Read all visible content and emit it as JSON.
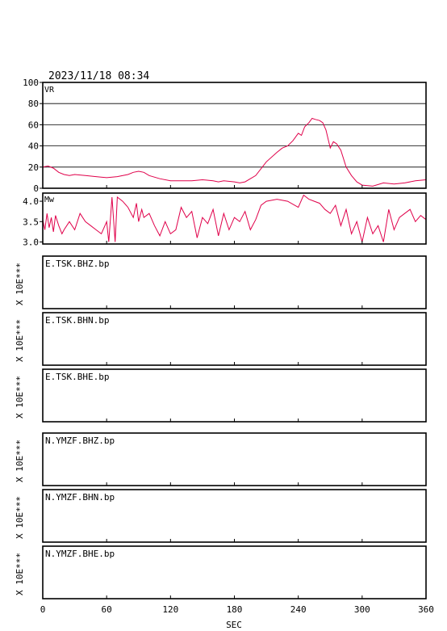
{
  "header": {
    "timestamp": "2023/11/18  08:34"
  },
  "colors": {
    "trace": "#e0004a",
    "frame": "#000000",
    "grid": "#000000"
  },
  "x_axis": {
    "label": "SEC",
    "ticks": [
      "0",
      "60",
      "120",
      "180",
      "240",
      "300",
      "360"
    ],
    "range": [
      0,
      360
    ]
  },
  "chart_data": [
    {
      "type": "line",
      "title": "VR",
      "ylim": [
        0,
        100
      ],
      "yticks": [
        "0",
        "20",
        "40",
        "60",
        "80",
        "100"
      ],
      "grid": true,
      "series": [
        {
          "x": [
            0,
            5,
            10,
            15,
            20,
            25,
            30,
            40,
            50,
            60,
            70,
            80,
            85,
            90,
            95,
            100,
            110,
            120,
            130,
            140,
            150,
            160,
            165,
            170,
            180,
            185,
            190,
            200,
            210,
            220,
            225,
            230,
            235,
            240,
            243,
            246,
            250,
            253,
            256,
            260,
            263,
            266,
            270,
            273,
            276,
            280,
            285,
            290,
            295,
            300,
            310,
            320,
            330,
            340,
            350,
            360
          ],
          "y": [
            20,
            21,
            19,
            15,
            13,
            12,
            13,
            12,
            11,
            10,
            11,
            13,
            15,
            16,
            15,
            12,
            9,
            7,
            7,
            7,
            8,
            7,
            6,
            7,
            6,
            5,
            6,
            12,
            25,
            34,
            38,
            40,
            45,
            52,
            50,
            58,
            62,
            66,
            65,
            64,
            62,
            55,
            38,
            44,
            42,
            36,
            20,
            12,
            6,
            3,
            2,
            5,
            4,
            5,
            7,
            8
          ]
        }
      ]
    },
    {
      "type": "line",
      "title": "Mw",
      "ylim": [
        2.95,
        4.2
      ],
      "yticks": [
        "3.0",
        "3.5",
        "4.0"
      ],
      "grid": false,
      "series": [
        {
          "x": [
            0,
            2,
            4,
            6,
            8,
            10,
            12,
            15,
            18,
            20,
            25,
            30,
            35,
            40,
            45,
            50,
            55,
            60,
            62,
            65,
            68,
            70,
            75,
            80,
            85,
            88,
            90,
            93,
            95,
            100,
            105,
            110,
            115,
            120,
            125,
            130,
            135,
            140,
            145,
            150,
            155,
            160,
            165,
            170,
            175,
            180,
            185,
            190,
            195,
            200,
            205,
            210,
            220,
            230,
            240,
            245,
            250,
            255,
            260,
            265,
            270,
            275,
            280,
            285,
            290,
            295,
            300,
            305,
            310,
            315,
            320,
            325,
            330,
            335,
            340,
            345,
            350,
            355,
            360
          ],
          "y": [
            3.55,
            3.3,
            3.7,
            3.35,
            3.6,
            3.25,
            3.65,
            3.4,
            3.2,
            3.3,
            3.5,
            3.3,
            3.7,
            3.5,
            3.4,
            3.3,
            3.2,
            3.5,
            3.0,
            4.1,
            3.0,
            4.1,
            4.0,
            3.85,
            3.6,
            3.95,
            3.5,
            3.8,
            3.6,
            3.7,
            3.4,
            3.15,
            3.5,
            3.2,
            3.3,
            3.85,
            3.6,
            3.75,
            3.1,
            3.6,
            3.45,
            3.8,
            3.15,
            3.7,
            3.3,
            3.6,
            3.5,
            3.75,
            3.3,
            3.55,
            3.9,
            4.0,
            4.05,
            4.0,
            3.85,
            4.15,
            4.05,
            4.0,
            3.95,
            3.8,
            3.7,
            3.9,
            3.4,
            3.8,
            3.2,
            3.5,
            3.0,
            3.6,
            3.2,
            3.4,
            3.0,
            3.8,
            3.3,
            3.6,
            3.7,
            3.8,
            3.5,
            3.65,
            3.55
          ]
        }
      ]
    }
  ],
  "wave_panels": [
    {
      "station": "E.TSK.BHZ.bp",
      "scale": "X 10E***"
    },
    {
      "station": "E.TSK.BHN.bp",
      "scale": "X 10E***"
    },
    {
      "station": "E.TSK.BHE.bp",
      "scale": "X 10E***"
    },
    {
      "station": "N.YMZF.BHZ.bp",
      "scale": "X 10E***"
    },
    {
      "station": "N.YMZF.BHN.bp",
      "scale": "X 10E***"
    },
    {
      "station": "N.YMZF.BHE.bp",
      "scale": "X 10E***"
    }
  ]
}
